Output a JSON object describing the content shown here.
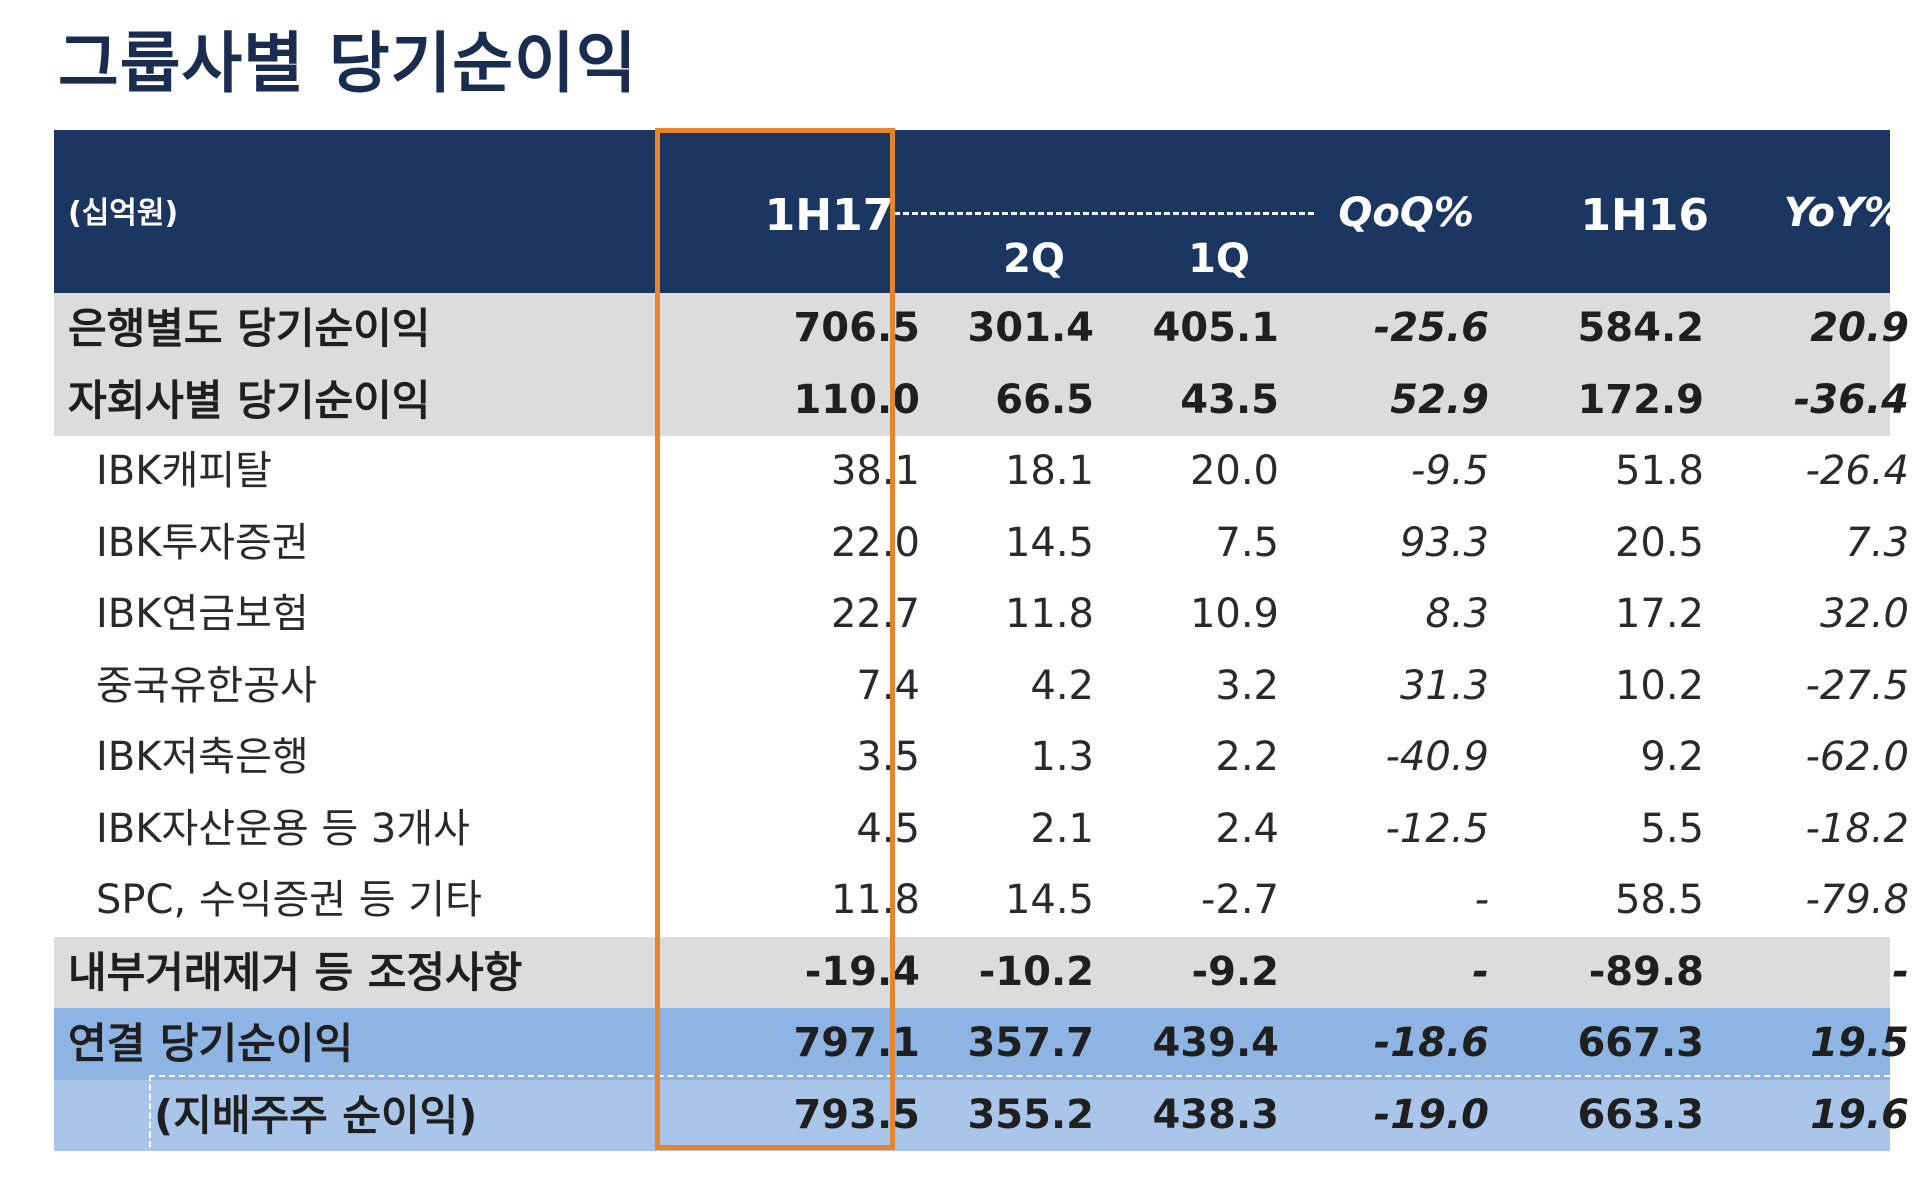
{
  "title": "그룹사별 당기순이익",
  "header": {
    "unit": "(십억원)",
    "col_1h17": "1H17",
    "col_2q": "2Q",
    "col_1q": "1Q",
    "col_qoq": "QoQ%",
    "col_1h16": "1H16",
    "col_yoy": "YoY%"
  },
  "chart_data": {
    "type": "table",
    "title": "그룹사별 당기순이익",
    "unit": "(십억원)",
    "columns": [
      "1H17",
      "2Q",
      "1Q",
      "QoQ%",
      "1H16",
      "YoY%"
    ],
    "highlighted_column": "1H17",
    "rows": [
      {
        "label": "은행별도 당기순이익",
        "values": [
          "706.5",
          "301.4",
          "405.1",
          "-25.6",
          "584.2",
          "20.9"
        ]
      },
      {
        "label": "자회사별 당기순이익",
        "values": [
          "110.0",
          "66.5",
          "43.5",
          "52.9",
          "172.9",
          "-36.4"
        ]
      },
      {
        "label": "IBK캐피탈",
        "values": [
          "38.1",
          "18.1",
          "20.0",
          "-9.5",
          "51.8",
          "-26.4"
        ]
      },
      {
        "label": "IBK투자증권",
        "values": [
          "22.0",
          "14.5",
          "7.5",
          "93.3",
          "20.5",
          "7.3"
        ]
      },
      {
        "label": "IBK연금보험",
        "values": [
          "22.7",
          "11.8",
          "10.9",
          "8.3",
          "17.2",
          "32.0"
        ]
      },
      {
        "label": "중국유한공사",
        "values": [
          "7.4",
          "4.2",
          "3.2",
          "31.3",
          "10.2",
          "-27.5"
        ]
      },
      {
        "label": "IBK저축은행",
        "values": [
          "3.5",
          "1.3",
          "2.2",
          "-40.9",
          "9.2",
          "-62.0"
        ]
      },
      {
        "label": "IBK자산운용 등  3개사",
        "values": [
          "4.5",
          "2.1",
          "2.4",
          "-12.5",
          "5.5",
          "-18.2"
        ]
      },
      {
        "label": "SPC, 수익증권 등 기타",
        "values": [
          "11.8",
          "14.5",
          "-2.7",
          "-",
          "58.5",
          "-79.8"
        ]
      },
      {
        "label": "내부거래제거 등 조정사항",
        "values": [
          "-19.4",
          "-10.2",
          "-9.2",
          "-",
          "-89.8",
          "-"
        ]
      },
      {
        "label": "연결 당기순이익",
        "values": [
          "797.1",
          "357.7",
          "439.4",
          "-18.6",
          "667.3",
          "19.5"
        ]
      },
      {
        "label": "(지배주주 순이익)",
        "values": [
          "793.5",
          "355.2",
          "438.3",
          "-19.0",
          "663.3",
          "19.6"
        ]
      }
    ]
  },
  "colors": {
    "header_bg": "#1b3661",
    "gray_row": "#dcdcdc",
    "blue_row": "#8db4e2",
    "blue_row_light": "#a9c6ea",
    "highlight_border": "#e7852d",
    "title": "#1a2d50"
  }
}
